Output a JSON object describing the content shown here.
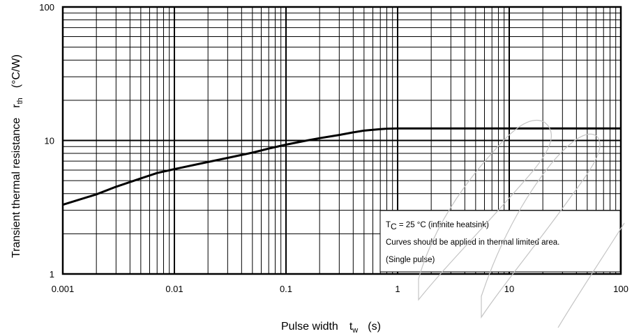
{
  "chart_data": {
    "type": "line",
    "x_scale": "log",
    "y_scale": "log",
    "xlim": [
      0.001,
      100
    ],
    "ylim": [
      1,
      100
    ],
    "grid": true,
    "x_ticks": [
      "0.001",
      "0.01",
      "0.1",
      "1",
      "10",
      "100"
    ],
    "y_ticks": [
      "1",
      "10",
      "100"
    ],
    "xlabel": {
      "main": "Pulse width",
      "symbol": "t",
      "subscript": "w",
      "unit": "(s)"
    },
    "ylabel": {
      "main": "Transient thermal resistance",
      "symbol": "r",
      "subscript": "th",
      "unit": "(°C/W)"
    },
    "annotations": {
      "condition_symbol": "T",
      "condition_subscript": "C",
      "condition_value": " = 25 °C (infinite heatsink)",
      "line2": "Curves should be applied in thermal limited area.",
      "line3": "(Single pulse)"
    },
    "series": [
      {
        "x": [
          0.001,
          0.002,
          0.003,
          0.005,
          0.007,
          0.01,
          0.02,
          0.03,
          0.05,
          0.07,
          0.1,
          0.15,
          0.2,
          0.3,
          0.4,
          0.5,
          0.7,
          0.8,
          1,
          2,
          5,
          10,
          20,
          50,
          100
        ],
        "y": [
          3.3,
          3.95,
          4.5,
          5.2,
          5.7,
          6.1,
          6.9,
          7.4,
          8.1,
          8.7,
          9.3,
          9.95,
          10.4,
          11.0,
          11.5,
          11.85,
          12.15,
          12.25,
          12.3,
          12.3,
          12.3,
          12.3,
          12.3,
          12.3,
          12.3
        ]
      }
    ]
  }
}
